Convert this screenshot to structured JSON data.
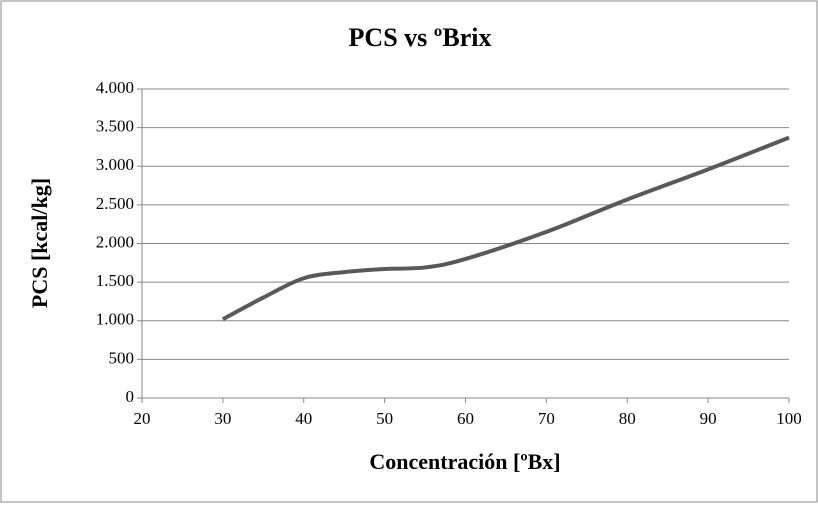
{
  "chart_data": {
    "type": "line",
    "title": "PCS vs ºBrix",
    "x_label": "Concentración [ºBx]",
    "y_label": "PCS [kcal/kg]",
    "x": [
      30,
      35,
      40,
      45,
      50,
      55,
      60,
      70,
      80,
      90,
      100
    ],
    "series": [
      {
        "name": "PCS",
        "color": "#595959",
        "values": [
          1020,
          1300,
          1550,
          1630,
          1670,
          1690,
          1800,
          2150,
          2570,
          2960,
          3370
        ]
      }
    ],
    "xlim": [
      20,
      100
    ],
    "xticks": [
      20,
      30,
      40,
      50,
      60,
      70,
      80,
      90,
      100
    ],
    "ylim": [
      0,
      4000
    ],
    "yticks": [
      0,
      500,
      {
        "value": 1000,
        "label": "1.000"
      },
      {
        "value": 1500,
        "label": "1.500"
      },
      {
        "value": 2000,
        "label": "2.000"
      },
      {
        "value": 2500,
        "label": "2.500"
      },
      {
        "value": 3000,
        "label": "3.000"
      },
      {
        "value": 3500,
        "label": "3.500"
      },
      {
        "value": 4000,
        "label": "4.000"
      }
    ],
    "grid": true,
    "legend": false
  }
}
